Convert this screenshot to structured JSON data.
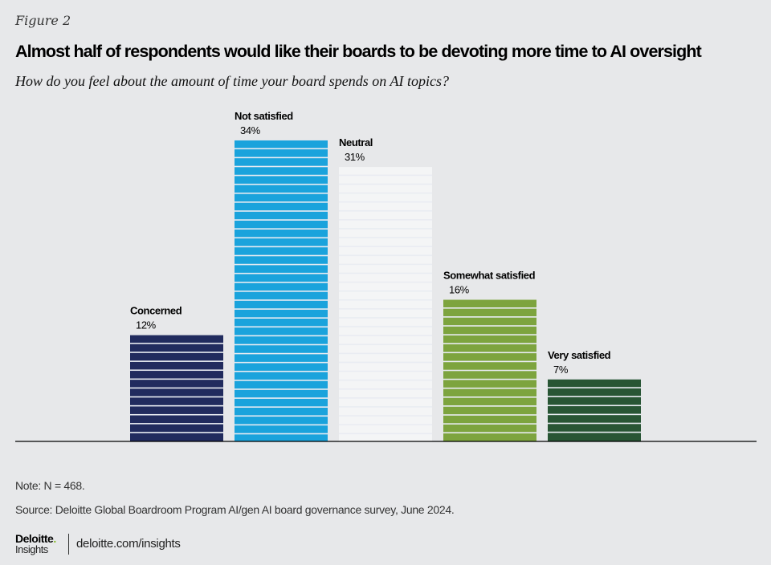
{
  "figure_label": "Figure 2",
  "title": "Almost half of respondents would like their boards to be devoting more time to AI oversight",
  "subtitle": "How do you feel about the amount of time your board spends on AI topics?",
  "chart_data": {
    "type": "bar",
    "title": "Almost half of respondents would like their boards to be devoting more time to AI oversight",
    "subtitle": "How do you feel about the amount of time your board spends on AI topics?",
    "categories": [
      "Concerned",
      "Not satisfied",
      "Neutral",
      "Somewhat satisfied",
      "Very satisfied"
    ],
    "values": [
      12,
      34,
      31,
      16,
      7
    ],
    "value_labels": [
      "12%",
      "34%",
      "31%",
      "16%",
      "7%"
    ],
    "colors": [
      "#212b5e",
      "#1aa3dc",
      "#f4f5f6",
      "#7da43e",
      "#285534"
    ],
    "unit": "%",
    "xlabel": "",
    "ylabel": "",
    "ylim": [
      0,
      34
    ],
    "grid": false,
    "legend": "none",
    "bar_style": "horizontal-striped"
  },
  "footer": {
    "note": "Note: N = 468.",
    "source": "Source: Deloitte Global Boardroom Program AI/gen AI board governance survey, June 2024.",
    "logo_line1": "Deloitte",
    "logo_dot": ".",
    "logo_line2": "Insights",
    "url": "deloitte.com/insights"
  }
}
